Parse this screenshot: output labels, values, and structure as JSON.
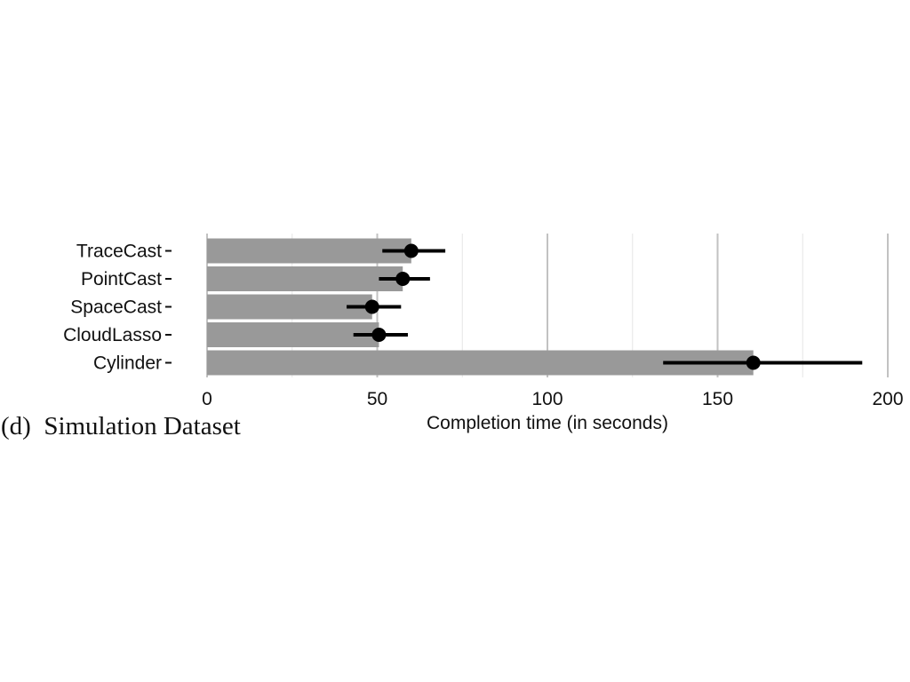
{
  "caption": "(d) Simulation Dataset",
  "chart_data": {
    "type": "bar",
    "orientation": "horizontal",
    "categories": [
      "TraceCast",
      "PointCast",
      "SpaceCast",
      "CloudLasso",
      "Cylinder"
    ],
    "values": [
      60,
      57.5,
      48.5,
      50.5,
      160.5
    ],
    "error_low": [
      51.5,
      50.5,
      41,
      43,
      134
    ],
    "error_high": [
      70,
      65.5,
      57,
      59,
      192.5
    ],
    "xlabel": "Completion time (in seconds)",
    "ylabel": "",
    "xlim": [
      0,
      200
    ],
    "xticks": [
      0,
      50,
      100,
      150,
      200
    ],
    "grid": true,
    "colors": {
      "bar": "#999999",
      "error": "#000000",
      "grid_major": "#c2c2c2",
      "grid_minor": "#e6e6e6",
      "text": "#111111"
    }
  }
}
